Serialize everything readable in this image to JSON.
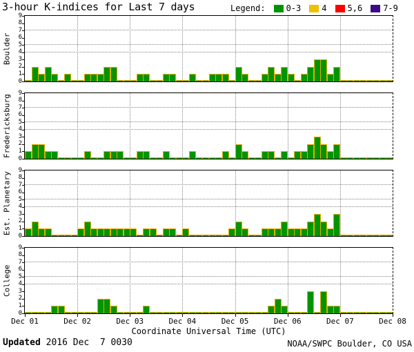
{
  "title": "3-hour K-indices for Last 7 days",
  "legend": {
    "label": "Legend:",
    "items": [
      {
        "label": "0-3",
        "color": "#009400"
      },
      {
        "label": "4",
        "color": "#efc000"
      },
      {
        "label": "5,6",
        "color": "#ff0000"
      },
      {
        "label": "7-9",
        "color": "#3d0b8a"
      }
    ]
  },
  "xlabel": "Coordinate Universal Time (UTC)",
  "footer": {
    "updated_label": "Updated",
    "updated_value": " 2016 Dec  7 0030",
    "credit": "NOAA/SWPC Boulder, CO USA"
  },
  "chart_data": {
    "type": "bar",
    "title": "3-hour K-indices for Last 7 days",
    "ylim": [
      0,
      9
    ],
    "y_ticks": [
      0,
      1,
      2,
      3,
      4,
      5,
      6,
      7,
      8,
      9
    ],
    "dotted_hlines": [
      4,
      5,
      7
    ],
    "grid": "dotted day boundaries vertical, dotted K=4,5,7 horizontal",
    "legend_position": "top-right",
    "categories": [
      "Dec 01",
      "Dec 02",
      "Dec 03",
      "Dec 04",
      "Dec 05",
      "Dec 06",
      "Dec 07",
      "Dec 08"
    ],
    "bars_per_day": 8,
    "bar_interval_hours": 3,
    "bar_outline_color": "#e2ad00",
    "value_colors": [
      {
        "range": "0-3",
        "color": "#009400"
      },
      {
        "range": "4",
        "color": "#efc000"
      },
      {
        "range": "5,6",
        "color": "#ff0000"
      },
      {
        "range": "7-9",
        "color": "#3d0b8a"
      }
    ],
    "panels": [
      {
        "station": "Boulder",
        "k_values_by_day": [
          [
            0,
            2,
            1,
            2,
            1,
            0,
            1,
            0
          ],
          [
            0,
            1,
            1,
            1,
            2,
            2,
            0,
            0
          ],
          [
            0,
            1,
            1,
            0,
            0,
            1,
            1,
            0
          ],
          [
            0,
            1,
            0,
            0,
            1,
            1,
            1,
            0
          ],
          [
            2,
            1,
            0,
            0,
            1,
            2,
            1,
            2
          ],
          [
            1,
            0,
            1,
            2,
            3,
            3,
            1,
            2
          ],
          [
            0,
            0,
            0,
            0,
            0,
            0,
            0,
            0
          ]
        ]
      },
      {
        "station": "Fredericksburg",
        "k_values_by_day": [
          [
            1,
            2,
            2,
            1,
            1,
            0,
            0,
            0
          ],
          [
            0,
            1,
            0,
            0,
            1,
            1,
            1,
            0
          ],
          [
            0,
            1,
            1,
            0,
            0,
            1,
            0,
            0
          ],
          [
            0,
            1,
            0,
            0,
            0,
            0,
            1,
            0
          ],
          [
            2,
            1,
            0,
            0,
            1,
            1,
            0,
            1
          ],
          [
            0,
            1,
            1,
            2,
            3,
            2,
            1,
            2
          ],
          [
            0,
            0,
            0,
            0,
            0,
            0,
            0,
            0
          ]
        ]
      },
      {
        "station": "Est. Planetary",
        "k_values_by_day": [
          [
            1,
            2,
            1,
            1,
            0,
            0,
            0,
            0
          ],
          [
            1,
            2,
            1,
            1,
            1,
            1,
            1,
            1
          ],
          [
            1,
            0,
            1,
            1,
            0,
            1,
            1,
            0
          ],
          [
            1,
            0,
            0,
            0,
            0,
            0,
            0,
            1
          ],
          [
            2,
            1,
            0,
            0,
            1,
            1,
            1,
            2
          ],
          [
            1,
            1,
            1,
            2,
            3,
            2,
            1,
            3
          ],
          [
            0,
            0,
            0,
            0,
            0,
            0,
            0,
            0
          ]
        ]
      },
      {
        "station": "College",
        "k_values_by_day": [
          [
            0,
            0,
            0,
            0,
            1,
            1,
            0,
            0
          ],
          [
            0,
            0,
            0,
            2,
            2,
            1,
            0,
            0
          ],
          [
            0,
            0,
            1,
            0,
            0,
            0,
            0,
            0
          ],
          [
            0,
            0,
            0,
            0,
            0,
            0,
            0,
            0
          ],
          [
            0,
            0,
            0,
            0,
            0,
            1,
            2,
            1
          ],
          [
            0,
            0,
            0,
            3,
            0,
            3,
            1,
            1
          ],
          [
            0,
            0,
            0,
            0,
            0,
            0,
            0,
            0
          ]
        ]
      }
    ]
  }
}
